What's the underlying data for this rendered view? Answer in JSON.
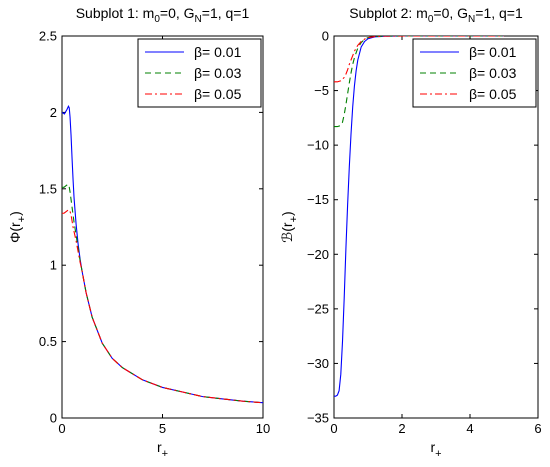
{
  "chart_data": [
    {
      "type": "line",
      "title": {
        "pre": "Subplot 1: m",
        "s1": "0",
        "mid": "=0, G",
        "s2": "N",
        "post": "=1, q=1"
      },
      "xlabel": {
        "main": "r",
        "sub": "+"
      },
      "ylabel": {
        "main": "Φ(r",
        "sub": "+",
        "close": ")"
      },
      "xlim": [
        0,
        10
      ],
      "ylim": [
        0,
        2.5
      ],
      "xticks": [
        "0",
        "5",
        "10"
      ],
      "yticks": [
        "0",
        "0.5",
        "1",
        "1.5",
        "2",
        "2.5"
      ],
      "legend_position": "top-right",
      "series": [
        {
          "name": "β= 0.01",
          "color": "#0000ff",
          "dash": "solid",
          "x": [
            0.0,
            0.12,
            0.25,
            0.32,
            0.36,
            0.4,
            0.45,
            0.5,
            0.55,
            0.6,
            0.7,
            0.8,
            0.9,
            1.0,
            1.2,
            1.5,
            2.0,
            2.5,
            3.0,
            4.0,
            5.0,
            6.0,
            7.0,
            8.0,
            9.0,
            10.0
          ],
          "y": [
            2.0,
            1.99,
            2.02,
            2.04,
            2.03,
            1.97,
            1.85,
            1.7,
            1.56,
            1.44,
            1.27,
            1.14,
            1.04,
            0.96,
            0.82,
            0.66,
            0.49,
            0.39,
            0.33,
            0.25,
            0.2,
            0.17,
            0.14,
            0.125,
            0.11,
            0.1
          ]
        },
        {
          "name": "β= 0.03",
          "color": "#008000",
          "dash": "6,4",
          "x": [
            0.0,
            0.1,
            0.2,
            0.3,
            0.35,
            0.4,
            0.45,
            0.5,
            0.55,
            0.6,
            0.7,
            0.8,
            0.9,
            1.0,
            1.2,
            1.5,
            2.0,
            2.5,
            3.0,
            4.0,
            5.0,
            6.0,
            7.0,
            8.0,
            9.0,
            10.0
          ],
          "y": [
            1.51,
            1.51,
            1.52,
            1.53,
            1.52,
            1.48,
            1.43,
            1.38,
            1.33,
            1.28,
            1.2,
            1.11,
            1.03,
            0.96,
            0.82,
            0.66,
            0.49,
            0.39,
            0.33,
            0.25,
            0.2,
            0.17,
            0.14,
            0.125,
            0.11,
            0.1
          ]
        },
        {
          "name": "β= 0.05",
          "color": "#ff0000",
          "dash": "7,3,2,3",
          "x": [
            0.0,
            0.1,
            0.2,
            0.3,
            0.38,
            0.45,
            0.5,
            0.55,
            0.6,
            0.7,
            0.8,
            0.9,
            1.0,
            1.2,
            1.5,
            2.0,
            2.5,
            3.0,
            4.0,
            5.0,
            6.0,
            7.0,
            8.0,
            9.0,
            10.0
          ],
          "y": [
            1.34,
            1.34,
            1.35,
            1.36,
            1.36,
            1.33,
            1.29,
            1.25,
            1.22,
            1.16,
            1.09,
            1.02,
            0.96,
            0.82,
            0.66,
            0.49,
            0.39,
            0.33,
            0.25,
            0.2,
            0.17,
            0.14,
            0.125,
            0.11,
            0.1
          ]
        }
      ]
    },
    {
      "type": "line",
      "title": {
        "pre": "Subplot 2: m",
        "s1": "0",
        "mid": "=0, G",
        "s2": "N",
        "post": "=1, q=1"
      },
      "xlabel": {
        "main": "r",
        "sub": "+"
      },
      "ylabel": {
        "main": "ℬ(r",
        "sub": "+",
        "close": ")"
      },
      "xlim": [
        0,
        6
      ],
      "ylim": [
        -35,
        0
      ],
      "xticks": [
        "0",
        "2",
        "4",
        "6"
      ],
      "yticks": [
        "−35",
        "−30",
        "−25",
        "−20",
        "−15",
        "−10",
        "−5",
        "0"
      ],
      "legend_position": "top-right",
      "series": [
        {
          "name": "β= 0.01",
          "color": "#0000ff",
          "dash": "solid",
          "x": [
            0.0,
            0.05,
            0.1,
            0.15,
            0.2,
            0.25,
            0.3,
            0.35,
            0.4,
            0.45,
            0.5,
            0.55,
            0.6,
            0.65,
            0.7,
            0.8,
            0.9,
            1.0,
            1.2,
            1.5,
            2.0,
            3.0,
            4.0,
            5.0
          ],
          "y": [
            -33.0,
            -33.0,
            -32.9,
            -32.5,
            -31.0,
            -28.0,
            -24.0,
            -19.5,
            -15.5,
            -12.0,
            -9.0,
            -6.5,
            -4.6,
            -3.2,
            -2.2,
            -1.0,
            -0.5,
            -0.25,
            -0.08,
            -0.02,
            0.0,
            0.0,
            0.0,
            0.0
          ]
        },
        {
          "name": "β= 0.03",
          "color": "#008000",
          "dash": "6,4",
          "x": [
            0.0,
            0.1,
            0.2,
            0.25,
            0.3,
            0.35,
            0.4,
            0.45,
            0.5,
            0.55,
            0.6,
            0.7,
            0.8,
            0.9,
            1.0,
            1.2,
            1.5,
            2.0,
            3.0,
            4.0,
            5.0
          ],
          "y": [
            -8.3,
            -8.3,
            -8.2,
            -7.9,
            -7.2,
            -6.3,
            -5.3,
            -4.3,
            -3.4,
            -2.6,
            -2.0,
            -1.1,
            -0.6,
            -0.3,
            -0.15,
            -0.05,
            -0.01,
            0.0,
            0.0,
            0.0,
            0.0
          ]
        },
        {
          "name": "β= 0.05",
          "color": "#ff0000",
          "dash": "7,3,2,3",
          "x": [
            0.0,
            0.1,
            0.2,
            0.3,
            0.35,
            0.4,
            0.45,
            0.5,
            0.55,
            0.6,
            0.7,
            0.8,
            0.9,
            1.0,
            1.2,
            1.5,
            2.0,
            3.0,
            4.0,
            5.0
          ],
          "y": [
            -4.2,
            -4.2,
            -4.1,
            -3.8,
            -3.5,
            -3.1,
            -2.6,
            -2.2,
            -1.8,
            -1.4,
            -0.85,
            -0.5,
            -0.28,
            -0.15,
            -0.05,
            -0.01,
            0.0,
            0.0,
            0.0,
            0.0
          ]
        }
      ]
    }
  ]
}
